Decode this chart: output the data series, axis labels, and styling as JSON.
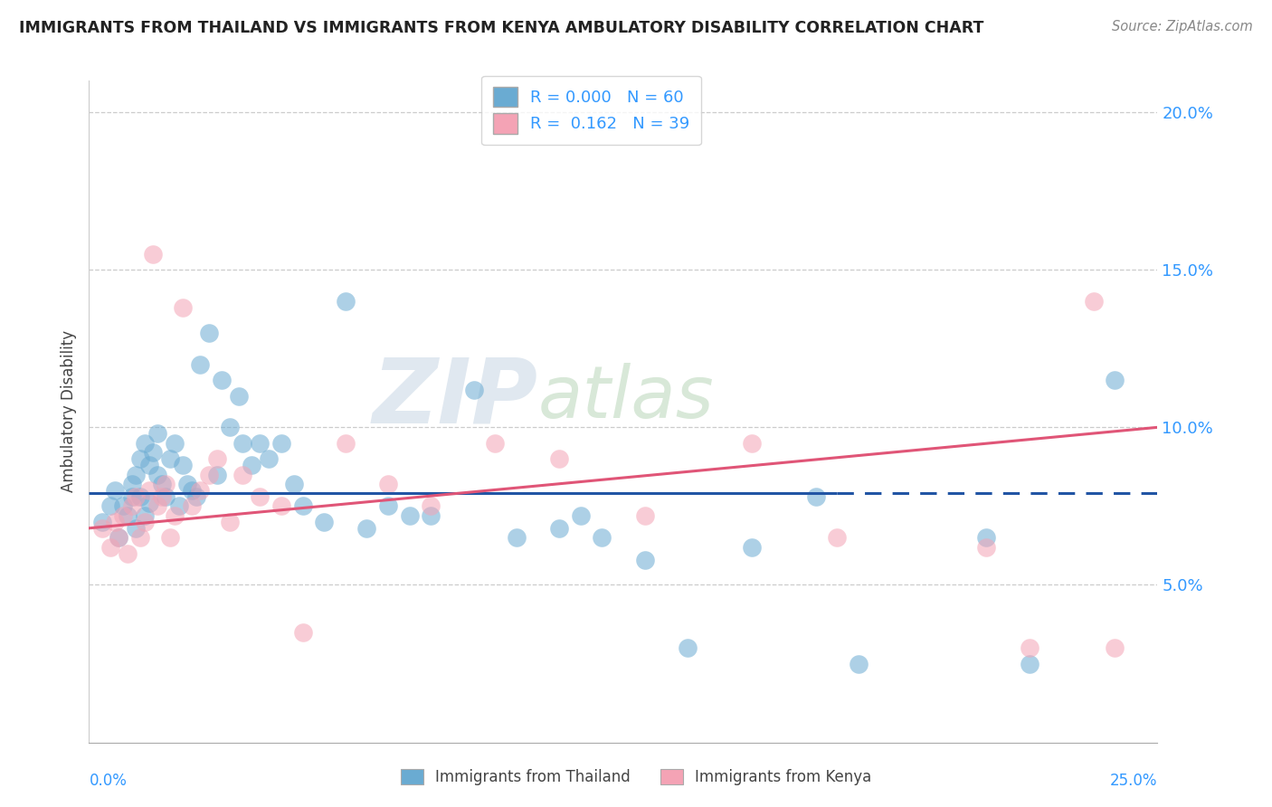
{
  "title": "IMMIGRANTS FROM THAILAND VS IMMIGRANTS FROM KENYA AMBULATORY DISABILITY CORRELATION CHART",
  "source": "Source: ZipAtlas.com",
  "ylabel": "Ambulatory Disability",
  "legend_thailand": "Immigrants from Thailand",
  "legend_kenya": "Immigrants from Kenya",
  "R_thailand": 0.0,
  "N_thailand": 60,
  "R_kenya": 0.162,
  "N_kenya": 39,
  "xlim": [
    0.0,
    0.25
  ],
  "ylim": [
    0.0,
    0.21
  ],
  "yticks": [
    0.05,
    0.1,
    0.15,
    0.2
  ],
  "ytick_labels": [
    "5.0%",
    "10.0%",
    "15.0%",
    "20.0%"
  ],
  "color_thailand": "#6aabd2",
  "color_kenya": "#f4a3b5",
  "line_color_thailand": "#2255a4",
  "line_color_kenya": "#e05577",
  "background": "#ffffff",
  "watermark_zip": "ZIP",
  "watermark_atlas": "atlas",
  "thailand_x": [
    0.003,
    0.005,
    0.006,
    0.007,
    0.008,
    0.009,
    0.01,
    0.01,
    0.011,
    0.011,
    0.012,
    0.012,
    0.013,
    0.013,
    0.014,
    0.014,
    0.015,
    0.016,
    0.016,
    0.017,
    0.018,
    0.019,
    0.02,
    0.021,
    0.022,
    0.023,
    0.024,
    0.025,
    0.026,
    0.028,
    0.03,
    0.031,
    0.033,
    0.035,
    0.036,
    0.038,
    0.04,
    0.042,
    0.045,
    0.048,
    0.05,
    0.055,
    0.06,
    0.065,
    0.07,
    0.075,
    0.08,
    0.09,
    0.1,
    0.11,
    0.115,
    0.12,
    0.13,
    0.14,
    0.155,
    0.17,
    0.18,
    0.21,
    0.22,
    0.24
  ],
  "thailand_y": [
    0.07,
    0.075,
    0.08,
    0.065,
    0.075,
    0.072,
    0.078,
    0.082,
    0.068,
    0.085,
    0.09,
    0.078,
    0.095,
    0.072,
    0.088,
    0.076,
    0.092,
    0.085,
    0.098,
    0.082,
    0.078,
    0.09,
    0.095,
    0.075,
    0.088,
    0.082,
    0.08,
    0.078,
    0.12,
    0.13,
    0.085,
    0.115,
    0.1,
    0.11,
    0.095,
    0.088,
    0.095,
    0.09,
    0.095,
    0.082,
    0.075,
    0.07,
    0.14,
    0.068,
    0.075,
    0.072,
    0.072,
    0.112,
    0.065,
    0.068,
    0.072,
    0.065,
    0.058,
    0.03,
    0.062,
    0.078,
    0.025,
    0.065,
    0.025,
    0.115
  ],
  "kenya_x": [
    0.003,
    0.005,
    0.006,
    0.007,
    0.008,
    0.009,
    0.01,
    0.011,
    0.012,
    0.013,
    0.014,
    0.015,
    0.016,
    0.017,
    0.018,
    0.019,
    0.02,
    0.022,
    0.024,
    0.026,
    0.028,
    0.03,
    0.033,
    0.036,
    0.04,
    0.045,
    0.05,
    0.06,
    0.07,
    0.08,
    0.095,
    0.11,
    0.13,
    0.155,
    0.175,
    0.21,
    0.22,
    0.235,
    0.24
  ],
  "kenya_y": [
    0.068,
    0.062,
    0.07,
    0.065,
    0.072,
    0.06,
    0.075,
    0.078,
    0.065,
    0.07,
    0.08,
    0.155,
    0.075,
    0.078,
    0.082,
    0.065,
    0.072,
    0.138,
    0.075,
    0.08,
    0.085,
    0.09,
    0.07,
    0.085,
    0.078,
    0.075,
    0.035,
    0.095,
    0.082,
    0.075,
    0.095,
    0.09,
    0.072,
    0.095,
    0.065,
    0.062,
    0.03,
    0.14,
    0.03
  ],
  "blue_line_solid_end": 0.175,
  "blue_line_y": 0.079,
  "pink_line_start_y": 0.068,
  "pink_line_end_y": 0.1
}
